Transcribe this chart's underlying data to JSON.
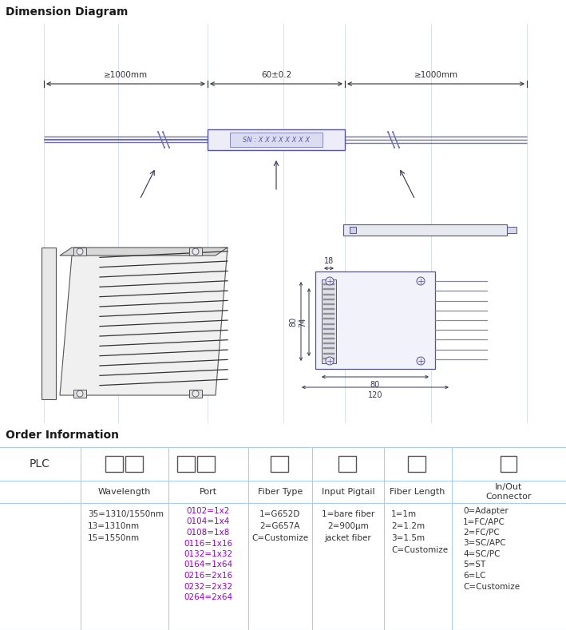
{
  "title_top": "Dimension Diagram",
  "title_bottom": "Order Information",
  "header_bg": "#c0c0c0",
  "header_text_color": "#1a1a1a",
  "background": "#ffffff",
  "fiber_color": "#7070b0",
  "box_edge_color": "#5555aa",
  "line_color": "#555588",
  "dim_color": "#333355",
  "table_line_color": "#aaccee",
  "purple_text": "#9900cc",
  "label_dim": "≥1000mm",
  "label_center_dim": "60±0.2",
  "label_sn": "SN : X X X X X X X X",
  "wavelength_label": "Wavelength",
  "port_label": "Port",
  "fiber_type_label": "Fiber Type",
  "input_pigtail_label": "Input Pigtail",
  "fiber_length_label": "Fiber Length",
  "inout_connector_label": "In/Out\nConnector",
  "wavelength_values": [
    "35=1310/1550nm",
    "13=1310nm",
    "15=1550nm"
  ],
  "port_values": [
    "0102=1x2",
    "0104=1x4",
    "0108=1x8",
    "0116=1x16",
    "0132=1x32",
    "0164=1x64",
    "0216=2x16",
    "0232=2x32",
    "0264=2x64"
  ],
  "fiber_type_values": [
    "1=G652D",
    "2=G657A",
    "C=Customize"
  ],
  "input_pigtail_values": [
    "1=bare fiber",
    "2=900μm",
    "jacket fiber"
  ],
  "fiber_length_values": [
    "1=1m",
    "2=1.2m",
    "3=1.5m",
    "C=Customize"
  ],
  "connector_values": [
    "0=Adapter",
    "1=FC/APC",
    "2=FC/PC",
    "3=SC/APC",
    "4=SC/PC",
    "5=ST",
    "6=LC",
    "C=Customize"
  ],
  "fig_w": 7.09,
  "fig_h": 7.89,
  "dpi": 100
}
